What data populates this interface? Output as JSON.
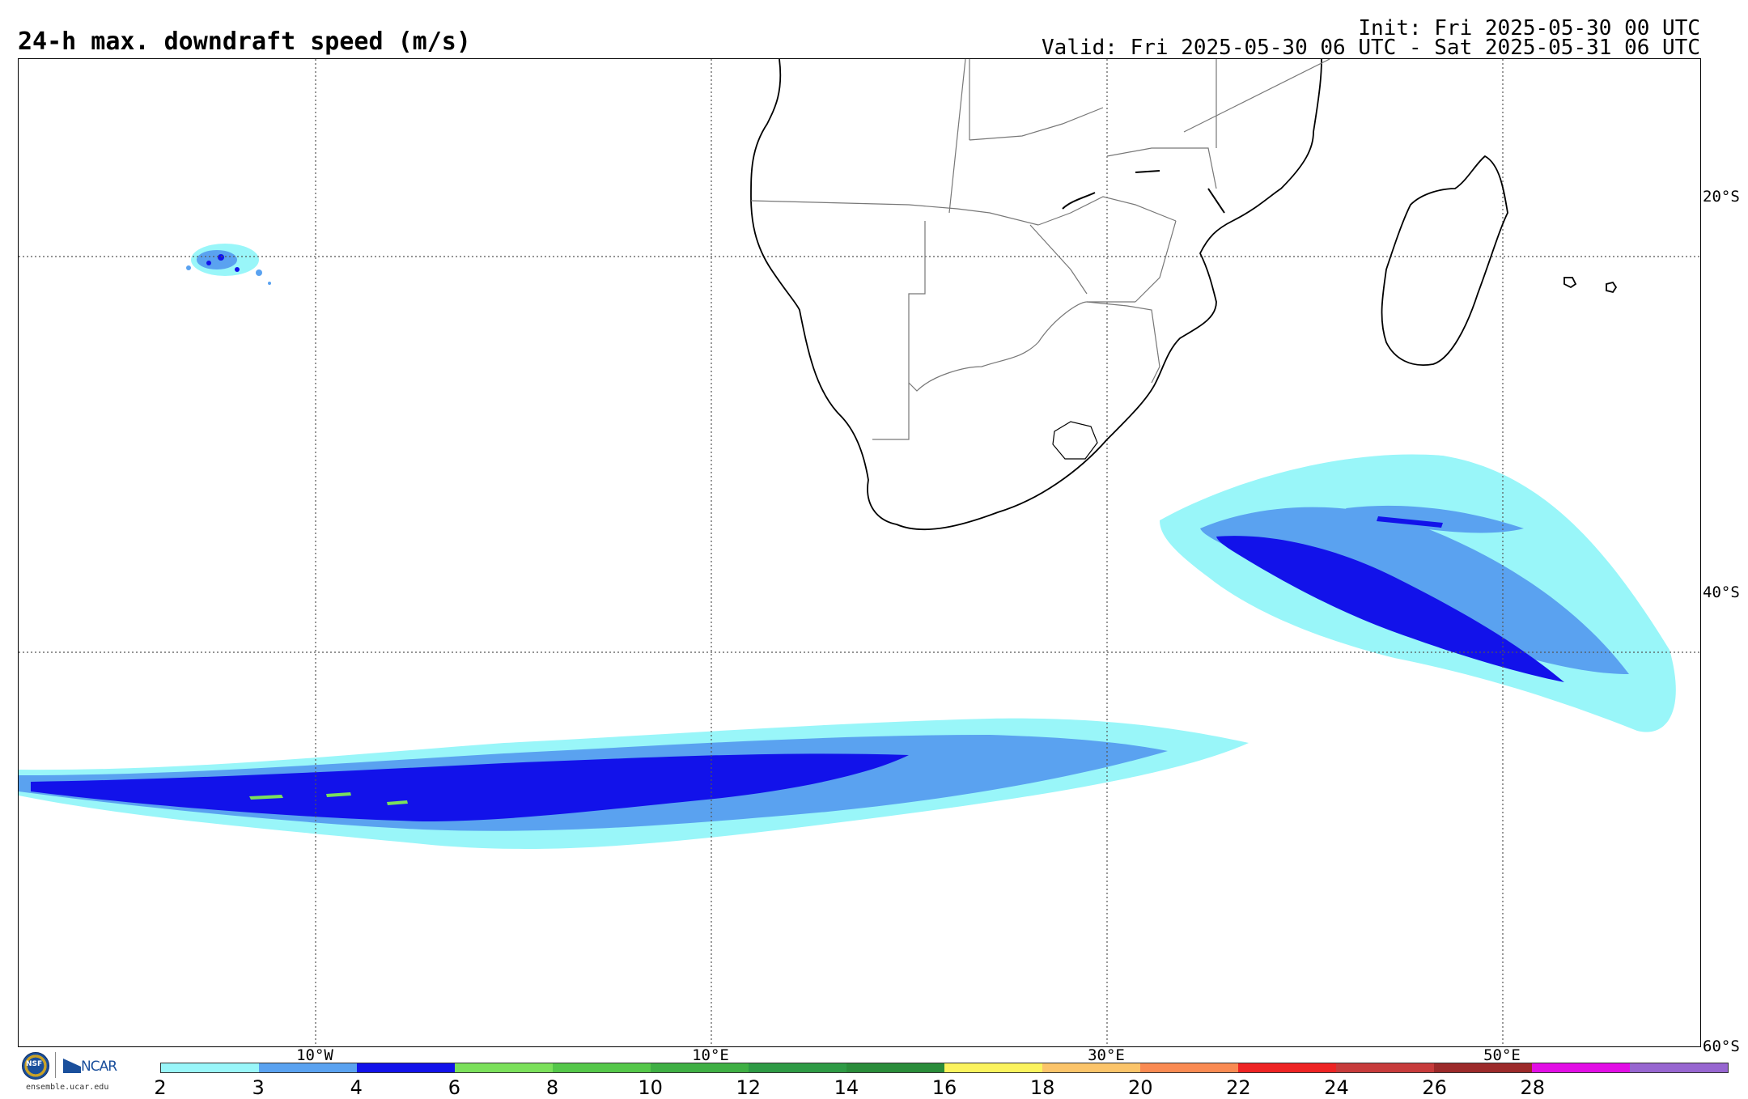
{
  "header": {
    "title": "24-h max. downdraft speed (m/s)",
    "init": "Init: Fri 2025-05-30 00 UTC",
    "valid": "Valid: Fri 2025-05-30 06 UTC - Sat 2025-05-31 06 UTC"
  },
  "map": {
    "projection": "cylindrical",
    "lon_range": [
      -25,
      60
    ],
    "lat_range": [
      -60,
      -10
    ],
    "lat_labels": [
      "20°S",
      "40°S",
      "60°S"
    ],
    "lon_labels": [
      "10°W",
      "10°E",
      "30°E",
      "50°E"
    ],
    "gridlines": "dotted",
    "coastline_color": "#000000",
    "border_color": "#777777"
  },
  "colorbar": {
    "ticks": [
      "2",
      "3",
      "4",
      "6",
      "8",
      "10",
      "12",
      "14",
      "16",
      "18",
      "20",
      "22",
      "24",
      "26",
      "28"
    ],
    "colors": [
      "#99f6f9",
      "#5aa2f0",
      "#1212ea",
      "#7be05b",
      "#55c74a",
      "#3faf44",
      "#2e9a45",
      "#2a8c3a",
      "#fbf35e",
      "#fbc46a",
      "#f98a52",
      "#ee2424",
      "#c73b3b",
      "#9c2a2a",
      "#e20ee5",
      "#9766d0"
    ]
  },
  "logos": {
    "nsf_text": "NSF",
    "ncar_text": "NCAR",
    "site": "ensemble.ucar.edu"
  }
}
